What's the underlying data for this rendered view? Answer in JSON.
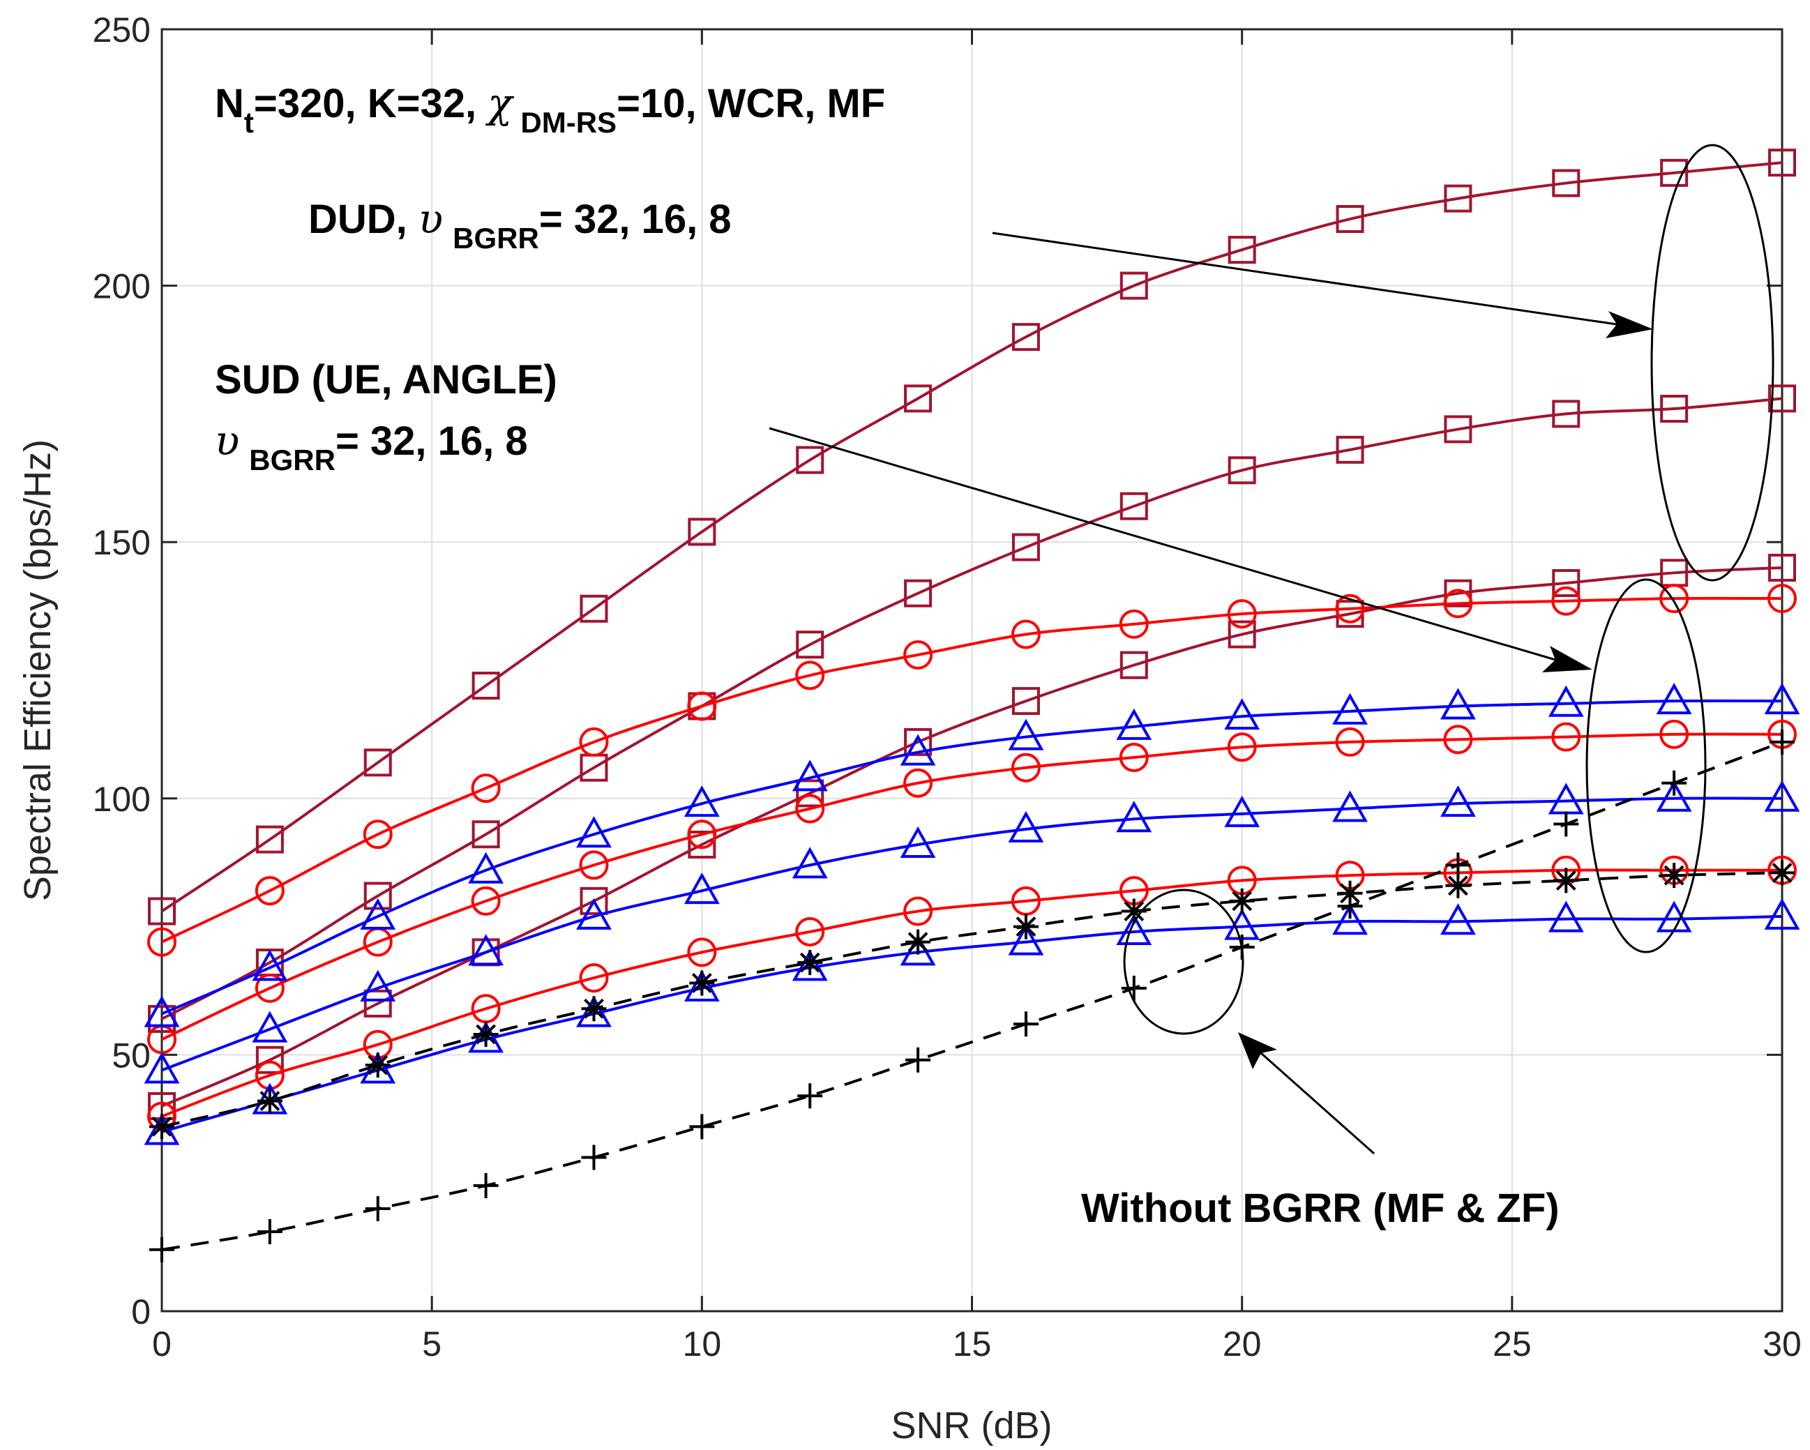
{
  "chart_data": {
    "type": "line",
    "title": "",
    "xlabel": "SNR (dB)",
    "ylabel": "Spectral Efficiency (bps/Hz)",
    "xlim": [
      0,
      30
    ],
    "ylim": [
      0,
      250
    ],
    "xticks": [
      "0",
      "5",
      "10",
      "15",
      "20",
      "25",
      "30"
    ],
    "yticks": [
      "0",
      "50",
      "100",
      "150",
      "200",
      "250"
    ],
    "grid": true,
    "x": [
      0,
      2,
      4,
      6,
      8,
      10,
      12,
      14,
      16,
      18,
      20,
      22,
      24,
      26,
      28,
      30
    ],
    "series": [
      {
        "name": "DUD, BGRR=32",
        "color": "#a2142f",
        "marker": "square",
        "line": "solid",
        "values": [
          78,
          92,
          107,
          122,
          137,
          152,
          166,
          178,
          190,
          200,
          207,
          213,
          217,
          220,
          222,
          224
        ]
      },
      {
        "name": "DUD, BGRR=16",
        "color": "#a2142f",
        "marker": "square",
        "line": "solid",
        "values": [
          57,
          68,
          81,
          93,
          106,
          118,
          130,
          140,
          149,
          157,
          164,
          168,
          172,
          175,
          176,
          178
        ]
      },
      {
        "name": "DUD, BGRR=8",
        "color": "#a2142f",
        "marker": "square",
        "line": "solid",
        "values": [
          40,
          49,
          60,
          70,
          80,
          91,
          101,
          111,
          119,
          126,
          132,
          136,
          140,
          142,
          144,
          145
        ]
      },
      {
        "name": "SUD (UE) BGRR=32",
        "color": "#ff0000",
        "marker": "circle",
        "line": "solid",
        "values": [
          72,
          82,
          93,
          102,
          111,
          118,
          124,
          128,
          132,
          134,
          136,
          137,
          138,
          138.5,
          139,
          139
        ]
      },
      {
        "name": "SUD (UE) BGRR=16",
        "color": "#ff0000",
        "marker": "circle",
        "line": "solid",
        "values": [
          53,
          63,
          72,
          80,
          87,
          93,
          98,
          103,
          106,
          108,
          110,
          111,
          111.5,
          112,
          112.5,
          112.5
        ]
      },
      {
        "name": "SUD (UE) BGRR=8",
        "color": "#ff0000",
        "marker": "circle",
        "line": "solid",
        "values": [
          38,
          46,
          52,
          59,
          65,
          70,
          74,
          78,
          80,
          82,
          84,
          85,
          85.5,
          86,
          86,
          86
        ]
      },
      {
        "name": "SUD (ANGLE) BGRR=32",
        "color": "#0000ff",
        "marker": "triangle",
        "line": "solid",
        "values": [
          58,
          67,
          77,
          86,
          93,
          99,
          104,
          109,
          112,
          114,
          116,
          117,
          118,
          118.5,
          119,
          119
        ]
      },
      {
        "name": "SUD (ANGLE) BGRR=16",
        "color": "#0000ff",
        "marker": "triangle",
        "line": "solid",
        "values": [
          47,
          55,
          63,
          70,
          77,
          82,
          87,
          91,
          94,
          96,
          97,
          98,
          99,
          99.5,
          100,
          100
        ]
      },
      {
        "name": "SUD (ANGLE) BGRR=8",
        "color": "#0000ff",
        "marker": "triangle",
        "line": "solid",
        "values": [
          35,
          41,
          47,
          53,
          58,
          63,
          67,
          70,
          72,
          74,
          75,
          76,
          76,
          76.5,
          76.5,
          77
        ]
      },
      {
        "name": "Without BGRR (MF)",
        "color": "#000000",
        "marker": "star",
        "line": "dashed",
        "values": [
          36,
          41,
          48,
          54,
          59,
          64,
          68,
          72,
          75,
          78,
          80,
          81.5,
          83,
          84,
          85,
          85.5
        ]
      },
      {
        "name": "Without BGRR (ZF)",
        "color": "#000000",
        "marker": "plus",
        "line": "dashed",
        "values": [
          12,
          15.5,
          20,
          24.5,
          30,
          36,
          42,
          49,
          56,
          63,
          71,
          79,
          87,
          95,
          103,
          111
        ]
      }
    ],
    "annotations": {
      "line1": {
        "n": "N",
        "n_sub": "t",
        "part1": "=320, K=32, ",
        "chi": "χ",
        "chi_sub": "DM-RS",
        "part2": "=10, WCR, MF"
      },
      "dud": {
        "label": "DUD, ",
        "upsilon": "υ",
        "sub": "BGRR",
        "values": "= 32, 16, 8"
      },
      "sud_line1": "SUD (UE, ANGLE)",
      "sud_line2": {
        "upsilon": "υ",
        "sub": "BGRR",
        "values": "= 32, 16, 8"
      },
      "without": "Without BGRR (MF & ZF)"
    }
  }
}
